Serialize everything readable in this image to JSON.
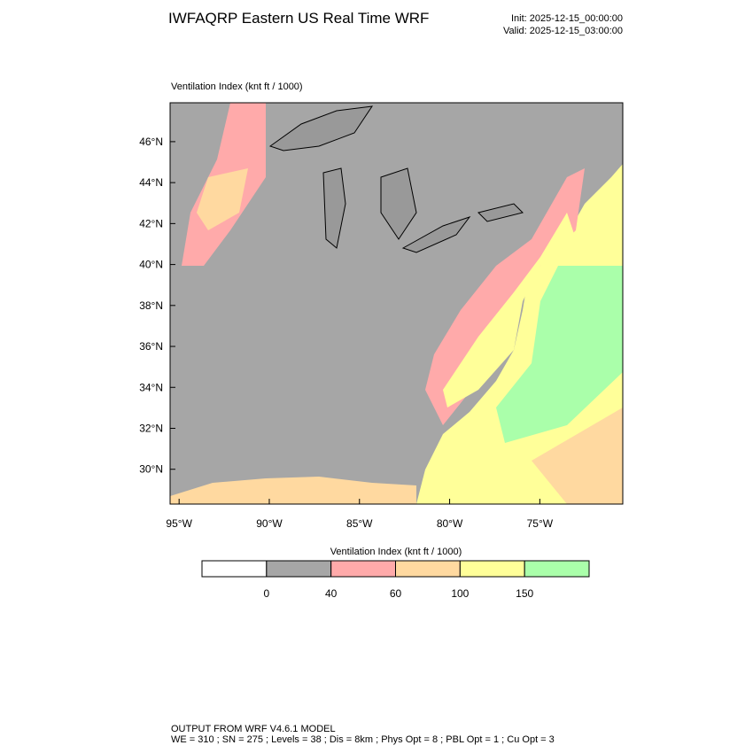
{
  "header": {
    "title": "IWFAQRP Eastern US Real Time WRF",
    "init": "Init: 2025-12-15_00:00:00",
    "valid": "Valid: 2025-12-15_03:00:00"
  },
  "map": {
    "label": "Ventilation Index   (knt ft / 1000)",
    "xlim": [
      -95.5,
      -70.4
    ],
    "ylim": [
      28.3,
      47.9
    ],
    "xticks": [
      {
        "value": -95,
        "label": "95°W"
      },
      {
        "value": -90,
        "label": "90°W"
      },
      {
        "value": -85,
        "label": "85°W"
      },
      {
        "value": -80,
        "label": "80°W"
      },
      {
        "value": -75,
        "label": "75°W"
      }
    ],
    "yticks": [
      {
        "value": 30,
        "label": "30°N"
      },
      {
        "value": 32,
        "label": "32°N"
      },
      {
        "value": 34,
        "label": "34°N"
      },
      {
        "value": 36,
        "label": "36°N"
      },
      {
        "value": 38,
        "label": "38°N"
      },
      {
        "value": 40,
        "label": "40°N"
      },
      {
        "value": 42,
        "label": "42°N"
      },
      {
        "value": 44,
        "label": "44°N"
      },
      {
        "value": 46,
        "label": "46°N"
      }
    ]
  },
  "colorbar": {
    "title": "Ventilation Index  (knt ft / 1000)",
    "levels": [
      0,
      40,
      60,
      100,
      150
    ],
    "colors": [
      "#ffffff",
      "#a6a6a6",
      "#ffaaaa",
      "#ffd9a0",
      "#ffff99",
      "#aaffaa"
    ]
  },
  "footer": {
    "line1": "OUTPUT FROM WRF V4.6.1 MODEL",
    "line2": "WE = 310 ; SN = 275 ; Levels = 38 ; Dis = 8km ; Phys Opt = 8 ; PBL Opt = 1 ; Cu Opt = 3"
  }
}
